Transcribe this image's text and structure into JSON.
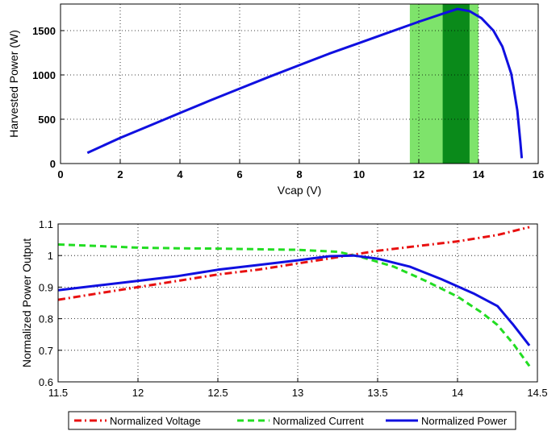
{
  "chart_data": [
    {
      "type": "line",
      "xlabel": "Vcap (V)",
      "ylabel": "Harvested Power (W)",
      "xlim": [
        0,
        16
      ],
      "ylim": [
        0,
        1800
      ],
      "xticks": [
        "0",
        "2",
        "4",
        "6",
        "8",
        "10",
        "12",
        "14",
        "16"
      ],
      "yticks": [
        "0",
        "500",
        "1000",
        "1500"
      ],
      "grid": true,
      "bands": [
        {
          "from": 11.7,
          "to": 14.0,
          "color": "#7ee36b"
        },
        {
          "from": 12.8,
          "to": 13.7,
          "color": "#0a8a1a"
        }
      ],
      "series": [
        {
          "color": "#1010e0",
          "x": [
            0.9,
            2,
            3,
            4,
            5,
            6,
            7,
            8,
            9,
            10,
            11,
            12,
            12.8,
            13.3,
            13.7,
            14.1,
            14.5,
            14.8,
            15.1,
            15.3,
            15.4,
            15.45
          ],
          "y": [
            120,
            290,
            430,
            570,
            710,
            845,
            980,
            1110,
            1240,
            1360,
            1480,
            1600,
            1690,
            1745,
            1720,
            1640,
            1500,
            1320,
            1010,
            600,
            250,
            60
          ]
        }
      ]
    },
    {
      "type": "line",
      "xlabel": "",
      "ylabel": "Normalized Power Output",
      "xlim": [
        11.5,
        14.5
      ],
      "ylim": [
        0.6,
        1.1
      ],
      "xticks": [
        "11.5",
        "12",
        "12.5",
        "13",
        "13.5",
        "14",
        "14.5"
      ],
      "yticks": [
        "0.6",
        "0.7",
        "0.8",
        "0.9",
        "1",
        "1.1"
      ],
      "grid": true,
      "legend": "bottom",
      "series": [
        {
          "name": "Normalized Voltage",
          "color": "#e81010",
          "dash": "dashdot",
          "x": [
            11.5,
            11.75,
            12,
            12.25,
            12.5,
            12.75,
            13,
            13.25,
            13.5,
            13.75,
            14,
            14.25,
            14.45
          ],
          "y": [
            0.86,
            0.88,
            0.9,
            0.92,
            0.94,
            0.955,
            0.975,
            0.995,
            1.015,
            1.03,
            1.045,
            1.065,
            1.09
          ]
        },
        {
          "name": "Normalized Current",
          "color": "#22dd22",
          "dash": "dashed",
          "x": [
            11.5,
            11.75,
            12,
            12.25,
            12.5,
            12.75,
            13,
            13.25,
            13.4,
            13.6,
            13.8,
            14,
            14.15,
            14.25,
            14.35,
            14.45
          ],
          "y": [
            1.035,
            1.03,
            1.025,
            1.023,
            1.022,
            1.02,
            1.018,
            1.012,
            0.995,
            0.965,
            0.92,
            0.87,
            0.82,
            0.78,
            0.72,
            0.65
          ]
        },
        {
          "name": "Normalized Power",
          "color": "#1010e0",
          "dash": "solid",
          "x": [
            11.5,
            11.75,
            12,
            12.25,
            12.5,
            12.75,
            13,
            13.2,
            13.35,
            13.5,
            13.7,
            13.9,
            14.1,
            14.25,
            14.35,
            14.45
          ],
          "y": [
            0.89,
            0.905,
            0.92,
            0.935,
            0.955,
            0.97,
            0.985,
            0.998,
            1.0,
            0.99,
            0.965,
            0.925,
            0.88,
            0.84,
            0.78,
            0.715
          ]
        }
      ]
    }
  ]
}
